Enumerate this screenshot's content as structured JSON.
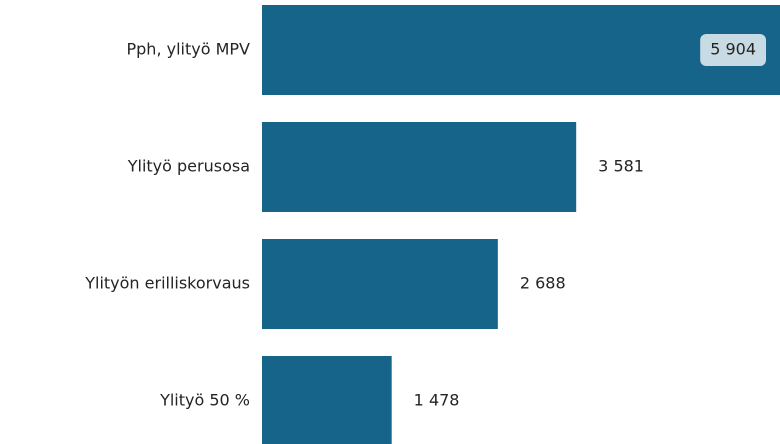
{
  "chart_data": {
    "type": "bar",
    "orientation": "horizontal",
    "categories": [
      "Pph, ylityö MPV",
      "Ylityö perusosa",
      "Ylityön erilliskorvaus",
      "Ylityö 50 %"
    ],
    "values": [
      5904,
      3581,
      2688,
      1478
    ],
    "value_labels": [
      "5 904",
      "3 581",
      "2 688",
      "1 478"
    ],
    "color": "#17648a"
  }
}
